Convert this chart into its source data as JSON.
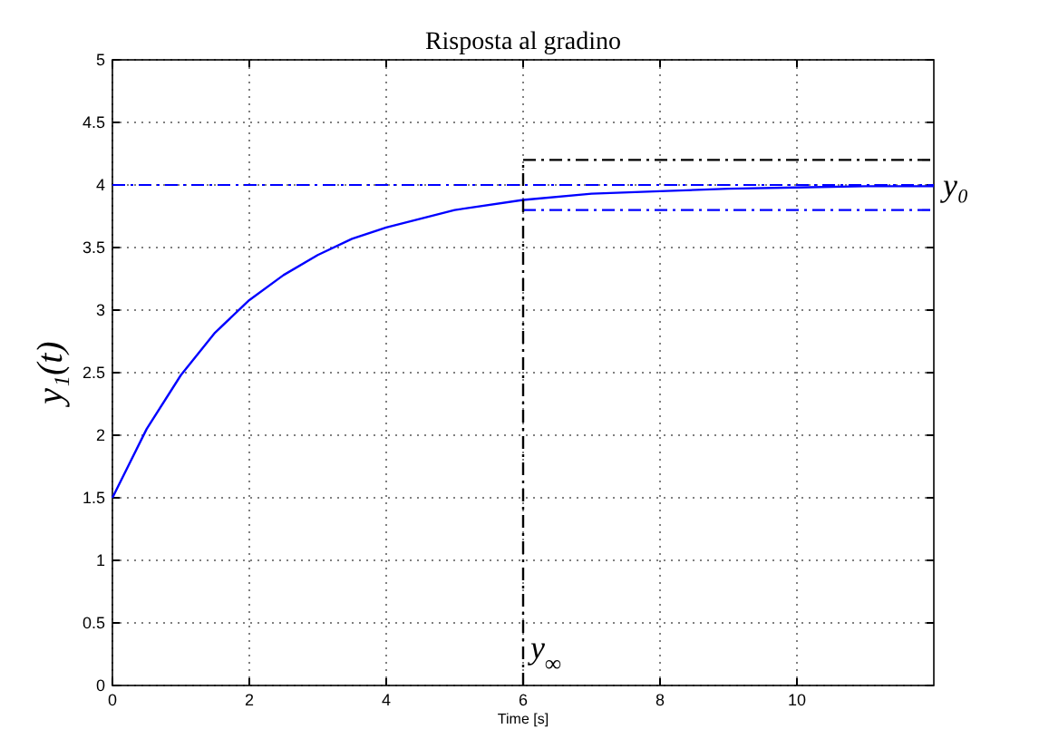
{
  "chart_data": {
    "type": "line",
    "title": "Risposta al gradino",
    "xlabel": "Time [s]",
    "ylabel": "y₁(t)",
    "xlim": [
      0,
      12
    ],
    "xticks": [
      0,
      2,
      4,
      6,
      8,
      10
    ],
    "ylim": [
      0,
      5
    ],
    "yticks": [
      0,
      0.5,
      1,
      1.5,
      2,
      2.5,
      3,
      3.5,
      4,
      4.5,
      5
    ],
    "grid": true,
    "series": [
      {
        "color": "#0000ff",
        "line_style": "solid",
        "x": [
          0,
          0.5,
          1,
          1.5,
          2,
          2.5,
          3,
          3.5,
          4,
          5,
          6,
          7,
          8,
          9,
          10,
          11,
          12
        ],
        "values": [
          1.5,
          2.05,
          2.48,
          2.82,
          3.08,
          3.28,
          3.44,
          3.57,
          3.66,
          3.8,
          3.88,
          3.93,
          3.95,
          3.97,
          3.98,
          3.99,
          3.99
        ]
      },
      {
        "color": "#000000",
        "line_style": "dashed",
        "x": [
          6,
          12
        ],
        "values": [
          4.2,
          4.2
        ]
      },
      {
        "color": "#0000ff",
        "line_style": "dashed",
        "x": [
          6,
          12
        ],
        "values": [
          3.8,
          3.8
        ]
      },
      {
        "color": "#000000",
        "line_style": "dashed",
        "x": [
          6,
          6
        ],
        "values": [
          0,
          4.2
        ]
      }
    ],
    "ref_lines": [
      {
        "axis": "y",
        "value": 4,
        "label": "y₀",
        "color": "#0000ff",
        "line_style": "dashed"
      }
    ],
    "annotations": [
      {
        "text": "y$_{∞}$",
        "x": 6,
        "y": 0.25
      }
    ]
  }
}
